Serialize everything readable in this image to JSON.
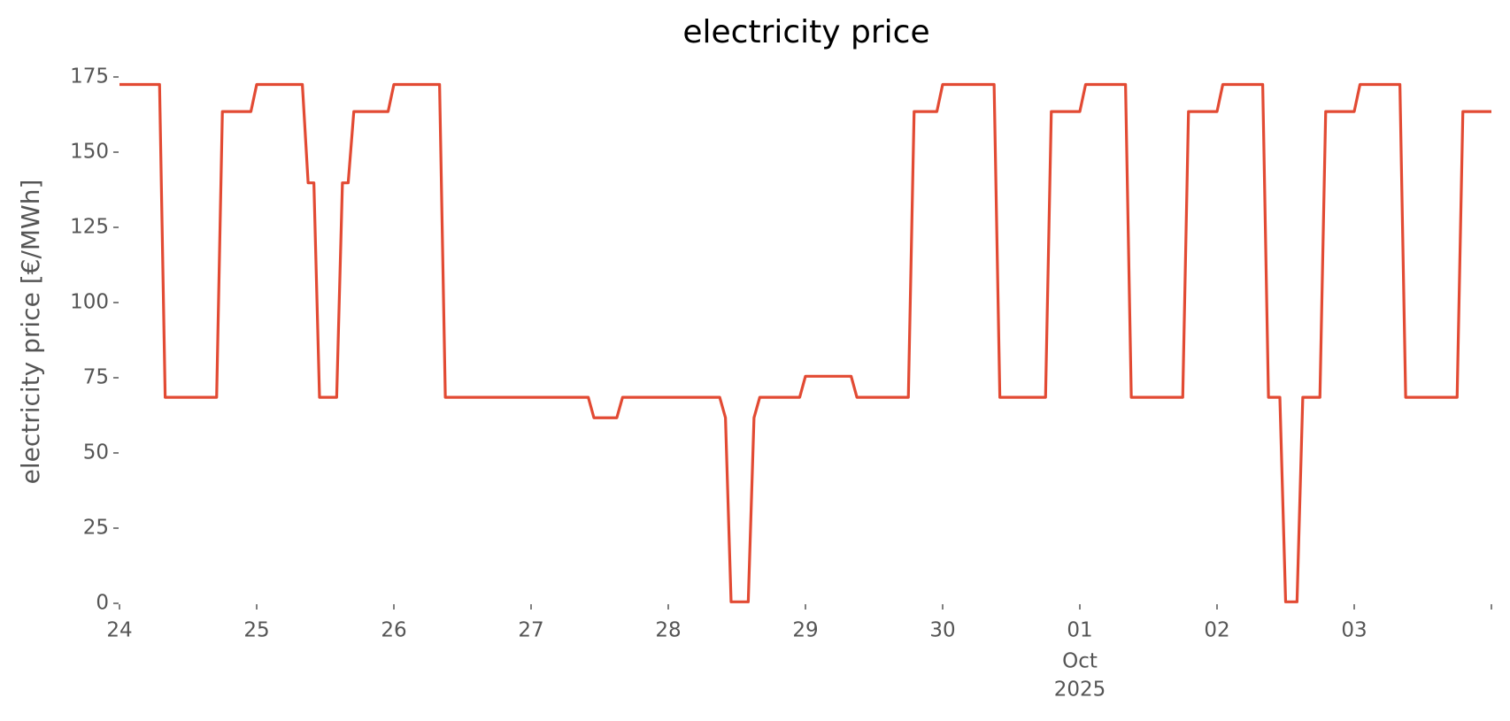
{
  "chart_data": {
    "type": "line",
    "title": "electricity price",
    "ylabel": "electricity price [€/MWh]",
    "color": "#e24a33",
    "x": [
      0,
      0.292,
      0.333,
      0.708,
      0.75,
      0.958,
      1.0,
      1.333,
      1.375,
      1.417,
      1.458,
      1.583,
      1.625,
      1.667,
      1.708,
      1.958,
      2.0,
      2.333,
      2.375,
      3.417,
      3.458,
      3.625,
      3.667,
      4.375,
      4.417,
      4.458,
      4.583,
      4.625,
      4.667,
      4.958,
      5.0,
      5.333,
      5.375,
      5.75,
      5.792,
      5.958,
      6.0,
      6.375,
      6.417,
      6.75,
      6.792,
      7.0,
      7.042,
      7.333,
      7.375,
      7.75,
      7.792,
      8.0,
      8.042,
      8.333,
      8.375,
      8.458,
      8.5,
      8.583,
      8.625,
      8.75,
      8.792,
      9.0,
      9.042,
      9.333,
      9.375,
      9.75,
      9.792,
      10.0
    ],
    "values": [
      172.5,
      172.5,
      68.5,
      68.5,
      163.5,
      163.5,
      172.5,
      172.5,
      139.8,
      139.8,
      68.5,
      68.5,
      139.8,
      139.8,
      163.5,
      163.5,
      172.5,
      172.5,
      68.5,
      68.5,
      61.7,
      61.7,
      68.5,
      68.5,
      61.7,
      0.5,
      0.5,
      61.7,
      68.5,
      68.5,
      75.5,
      75.5,
      68.5,
      68.5,
      163.5,
      163.5,
      172.5,
      172.5,
      68.5,
      68.5,
      163.5,
      163.5,
      172.5,
      172.5,
      68.5,
      68.5,
      163.5,
      163.5,
      172.5,
      172.5,
      68.5,
      68.5,
      0.5,
      0.5,
      68.5,
      68.5,
      163.5,
      163.5,
      172.5,
      172.5,
      68.5,
      68.5,
      163.5,
      163.5
    ],
    "xlim": [
      0,
      10
    ],
    "xticks": [
      {
        "value": 0,
        "label": "24"
      },
      {
        "value": 1,
        "label": "25"
      },
      {
        "value": 2,
        "label": "26"
      },
      {
        "value": 3,
        "label": "27"
      },
      {
        "value": 4,
        "label": "28"
      },
      {
        "value": 5,
        "label": "29"
      },
      {
        "value": 6,
        "label": "30"
      },
      {
        "value": 7,
        "label": "01"
      },
      {
        "value": 8,
        "label": "02"
      },
      {
        "value": 9,
        "label": "03"
      },
      {
        "value": 10,
        "label": null
      }
    ],
    "xtick_sublabels": [
      {
        "value": 7,
        "label": "Oct"
      },
      {
        "value": 7,
        "label": "2025"
      }
    ],
    "ylim": [
      0,
      175
    ],
    "yticks": [
      0,
      25,
      50,
      75,
      100,
      125,
      150,
      175
    ],
    "grid": false
  }
}
